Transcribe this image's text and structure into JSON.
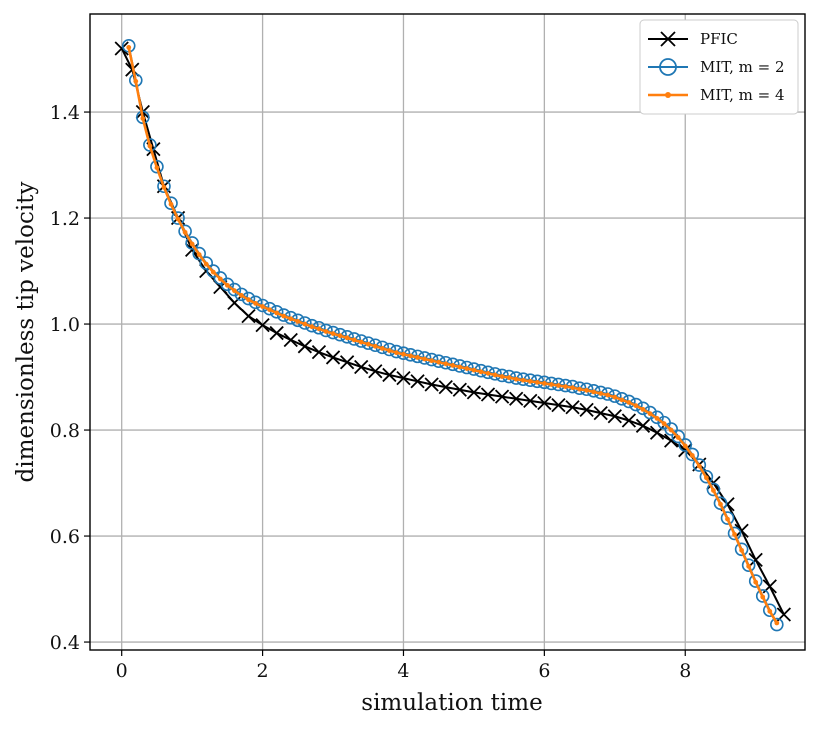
{
  "chart_data": {
    "type": "line",
    "title": "",
    "xlabel": "simulation time",
    "ylabel": "dimensionless tip velocity",
    "xlim": [
      -0.45,
      9.7
    ],
    "ylim": [
      0.385,
      1.585
    ],
    "xticks": [
      0,
      2,
      4,
      6,
      8
    ],
    "yticks": [
      0.4,
      0.6,
      0.8,
      1.0,
      1.2,
      1.4
    ],
    "xtick_labels": [
      "0",
      "2",
      "4",
      "6",
      "8"
    ],
    "ytick_labels": [
      "0.4",
      "0.6",
      "0.8",
      "1.0",
      "1.2",
      "1.4"
    ],
    "grid": true,
    "legend_position": "top-right",
    "series": [
      {
        "name": "PFIC",
        "color": "#000000",
        "marker": "x",
        "x": [
          0.0,
          0.15,
          0.3,
          0.45,
          0.6,
          0.8,
          1.0,
          1.2,
          1.4,
          1.6,
          1.8,
          2.0,
          2.2,
          2.4,
          2.6,
          2.8,
          3.0,
          3.2,
          3.4,
          3.6,
          3.8,
          4.0,
          4.2,
          4.4,
          4.6,
          4.8,
          5.0,
          5.2,
          5.4,
          5.6,
          5.8,
          6.0,
          6.2,
          6.4,
          6.6,
          6.8,
          7.0,
          7.2,
          7.4,
          7.6,
          7.8,
          8.0,
          8.2,
          8.4,
          8.6,
          8.8,
          9.0,
          9.2,
          9.4
        ],
        "y": [
          1.52,
          1.48,
          1.4,
          1.33,
          1.26,
          1.2,
          1.14,
          1.1,
          1.07,
          1.04,
          1.015,
          0.998,
          0.983,
          0.97,
          0.958,
          0.947,
          0.937,
          0.928,
          0.919,
          0.911,
          0.904,
          0.898,
          0.892,
          0.886,
          0.881,
          0.876,
          0.871,
          0.867,
          0.863,
          0.859,
          0.855,
          0.851,
          0.847,
          0.843,
          0.838,
          0.832,
          0.826,
          0.818,
          0.808,
          0.795,
          0.78,
          0.762,
          0.735,
          0.7,
          0.66,
          0.61,
          0.555,
          0.505,
          0.452
        ]
      },
      {
        "name": "MIT, m = 2",
        "color": "#1f77b4",
        "marker": "o",
        "x": [
          0.1,
          0.2,
          0.3,
          0.4,
          0.5,
          0.6,
          0.7,
          0.8,
          0.9,
          1.0,
          1.1,
          1.2,
          1.3,
          1.4,
          1.5,
          1.6,
          1.7,
          1.8,
          1.9,
          2.0,
          2.1,
          2.2,
          2.3,
          2.4,
          2.5,
          2.6,
          2.7,
          2.8,
          2.9,
          3.0,
          3.1,
          3.2,
          3.3,
          3.4,
          3.5,
          3.6,
          3.7,
          3.8,
          3.9,
          4.0,
          4.1,
          4.2,
          4.3,
          4.4,
          4.5,
          4.6,
          4.7,
          4.8,
          4.9,
          5.0,
          5.1,
          5.2,
          5.3,
          5.4,
          5.5,
          5.6,
          5.7,
          5.8,
          5.9,
          6.0,
          6.1,
          6.2,
          6.3,
          6.4,
          6.5,
          6.6,
          6.7,
          6.8,
          6.9,
          7.0,
          7.1,
          7.2,
          7.3,
          7.4,
          7.5,
          7.6,
          7.7,
          7.8,
          7.9,
          8.0,
          8.1,
          8.2,
          8.3,
          8.4,
          8.5,
          8.6,
          8.7,
          8.8,
          8.9,
          9.0,
          9.1,
          9.2,
          9.3
        ],
        "y": [
          1.525,
          1.46,
          1.39,
          1.338,
          1.297,
          1.26,
          1.228,
          1.2,
          1.175,
          1.153,
          1.133,
          1.115,
          1.1,
          1.087,
          1.075,
          1.065,
          1.056,
          1.048,
          1.041,
          1.035,
          1.029,
          1.023,
          1.017,
          1.012,
          1.007,
          1.002,
          0.997,
          0.993,
          0.988,
          0.984,
          0.98,
          0.976,
          0.972,
          0.968,
          0.964,
          0.96,
          0.956,
          0.952,
          0.948,
          0.945,
          0.942,
          0.939,
          0.936,
          0.933,
          0.93,
          0.927,
          0.924,
          0.921,
          0.918,
          0.915,
          0.912,
          0.909,
          0.906,
          0.903,
          0.901,
          0.898,
          0.896,
          0.894,
          0.892,
          0.89,
          0.888,
          0.886,
          0.884,
          0.882,
          0.879,
          0.877,
          0.874,
          0.871,
          0.868,
          0.864,
          0.859,
          0.854,
          0.848,
          0.841,
          0.833,
          0.824,
          0.814,
          0.802,
          0.788,
          0.772,
          0.754,
          0.734,
          0.712,
          0.688,
          0.662,
          0.634,
          0.605,
          0.575,
          0.545,
          0.515,
          0.487,
          0.46,
          0.433
        ]
      },
      {
        "name": "MIT, m = 4",
        "color": "#ff7f0e",
        "marker": ".",
        "x": [
          0.1,
          0.2,
          0.3,
          0.4,
          0.5,
          0.6,
          0.7,
          0.8,
          0.9,
          1.0,
          1.1,
          1.2,
          1.3,
          1.4,
          1.5,
          1.6,
          1.7,
          1.8,
          1.9,
          2.0,
          2.1,
          2.2,
          2.3,
          2.4,
          2.5,
          2.6,
          2.7,
          2.8,
          2.9,
          3.0,
          3.1,
          3.2,
          3.3,
          3.4,
          3.5,
          3.6,
          3.7,
          3.8,
          3.9,
          4.0,
          4.1,
          4.2,
          4.3,
          4.4,
          4.5,
          4.6,
          4.7,
          4.8,
          4.9,
          5.0,
          5.1,
          5.2,
          5.3,
          5.4,
          5.5,
          5.6,
          5.7,
          5.8,
          5.9,
          6.0,
          6.1,
          6.2,
          6.3,
          6.4,
          6.5,
          6.6,
          6.7,
          6.8,
          6.9,
          7.0,
          7.1,
          7.2,
          7.3,
          7.4,
          7.5,
          7.6,
          7.7,
          7.8,
          7.9,
          8.0,
          8.1,
          8.2,
          8.3,
          8.4,
          8.5,
          8.6,
          8.7,
          8.8,
          8.9,
          9.0,
          9.1,
          9.2,
          9.3
        ],
        "y": [
          1.522,
          1.458,
          1.388,
          1.336,
          1.295,
          1.258,
          1.226,
          1.198,
          1.173,
          1.151,
          1.131,
          1.113,
          1.098,
          1.085,
          1.073,
          1.063,
          1.054,
          1.046,
          1.039,
          1.033,
          1.027,
          1.021,
          1.015,
          1.01,
          1.005,
          1.0,
          0.995,
          0.991,
          0.986,
          0.982,
          0.978,
          0.974,
          0.97,
          0.966,
          0.962,
          0.958,
          0.954,
          0.95,
          0.946,
          0.943,
          0.94,
          0.937,
          0.934,
          0.931,
          0.928,
          0.925,
          0.922,
          0.919,
          0.916,
          0.913,
          0.91,
          0.907,
          0.904,
          0.901,
          0.899,
          0.896,
          0.894,
          0.892,
          0.89,
          0.888,
          0.886,
          0.884,
          0.882,
          0.88,
          0.877,
          0.875,
          0.872,
          0.869,
          0.866,
          0.862,
          0.857,
          0.852,
          0.846,
          0.839,
          0.831,
          0.822,
          0.812,
          0.8,
          0.786,
          0.77,
          0.752,
          0.732,
          0.71,
          0.686,
          0.66,
          0.632,
          0.603,
          0.573,
          0.543,
          0.513,
          0.485,
          0.458,
          0.436
        ]
      }
    ]
  }
}
